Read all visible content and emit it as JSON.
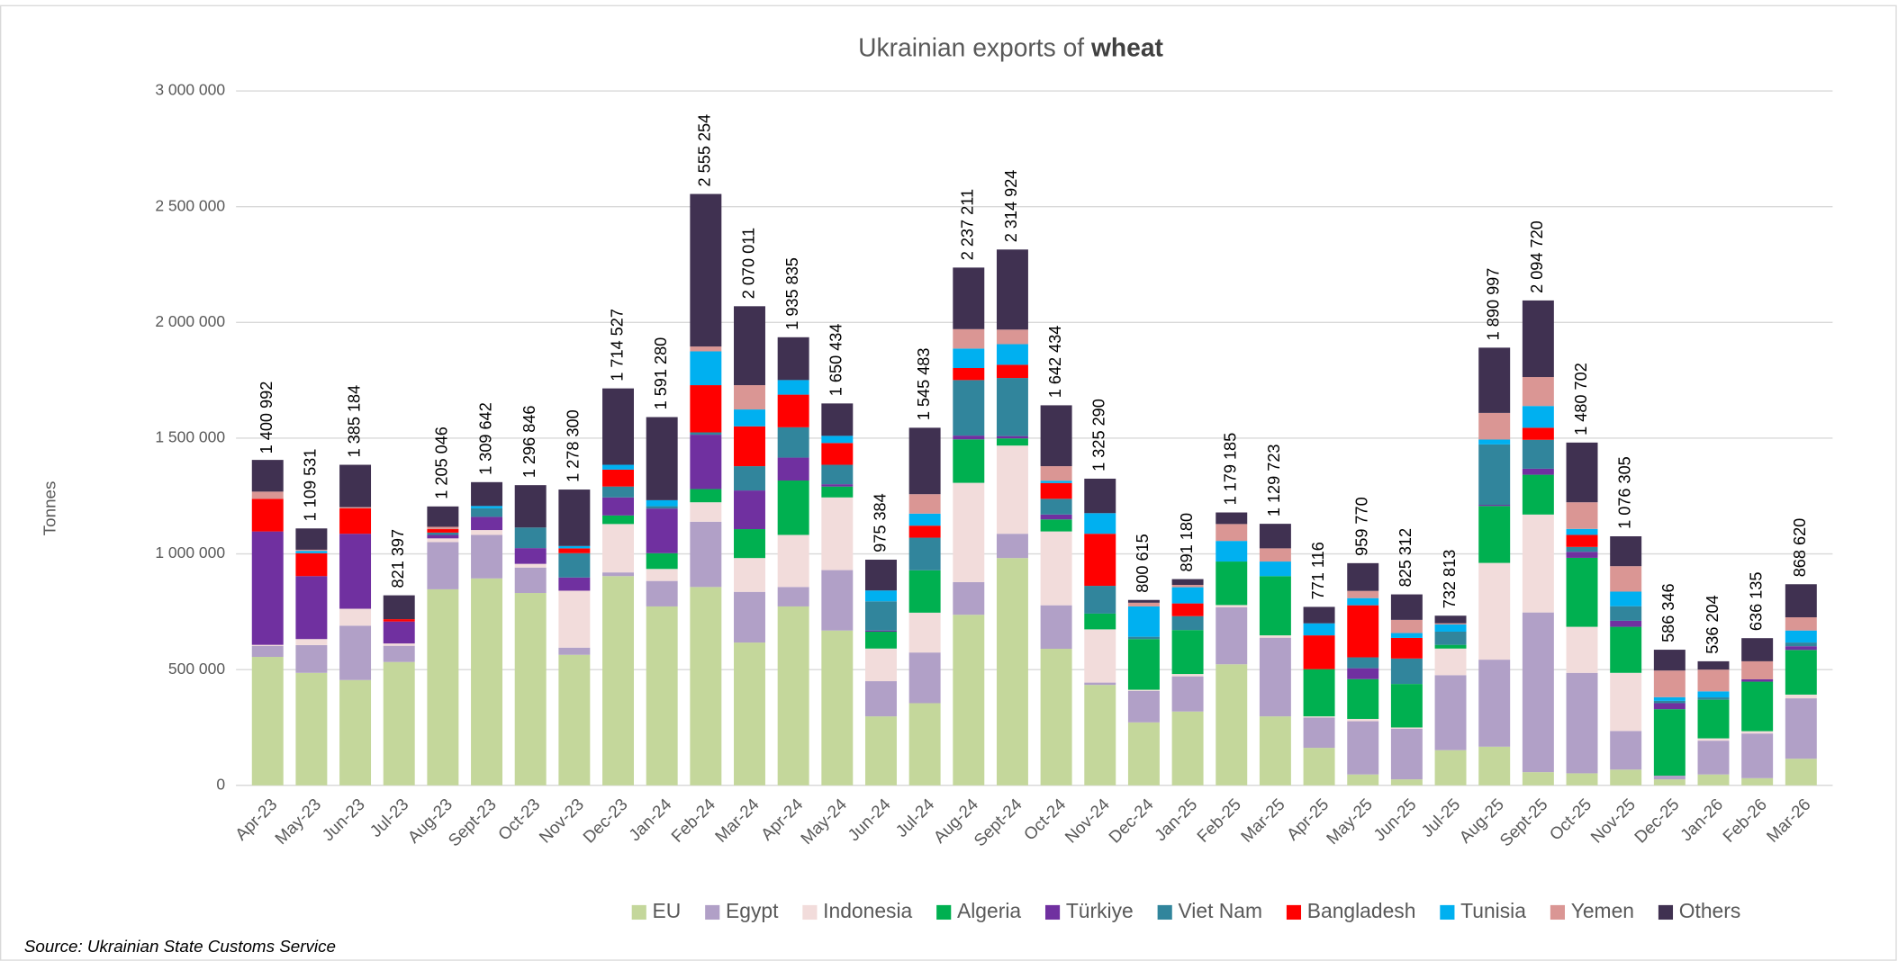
{
  "chart_data": {
    "type": "stacked_bar",
    "title": "Ukrainian exports of",
    "title_emphasis": "wheat",
    "y_label": "Tonnes",
    "source": "Source: Ukrainian State Customs Service",
    "categories": [
      "Apr-23",
      "May-23",
      "Jun-23",
      "Jul-23",
      "Aug-23",
      "Sept-23",
      "Oct-23",
      "Nov-23",
      "Dec-23",
      "Jan-24",
      "Feb-24",
      "Mar-24",
      "Apr-24",
      "May-24",
      "Jun-24",
      "Jul-24",
      "Aug-24",
      "Sept-24",
      "Oct-24",
      "Nov-24",
      "Dec-24",
      "Jan-25",
      "Feb-25",
      "Mar-25",
      "Apr-25",
      "May-25",
      "Jun-25",
      "Jul-25",
      "Aug-25",
      "Sept-25",
      "Oct-25",
      "Nov-25",
      "Dec-25",
      "Jan-26",
      "Feb-26",
      "Mar-26"
    ],
    "series": [
      {
        "name": "EU",
        "color": "#c4d79b",
        "values": [
          555000,
          486000,
          455000,
          533000,
          847000,
          894000,
          831000,
          564000,
          904000,
          773000,
          857000,
          617000,
          773000,
          669000,
          298000,
          355000,
          737000,
          982000,
          590000,
          434000,
          272000,
          319000,
          523000,
          298000,
          162000,
          47000,
          26000,
          152000,
          167000,
          57000,
          52000,
          68000,
          26000,
          47000,
          31000,
          115000
        ]
      },
      {
        "name": "Egypt",
        "color": "#b1a0c7",
        "values": [
          47000,
          120000,
          235000,
          70000,
          204000,
          188000,
          110000,
          31000,
          16000,
          110000,
          282000,
          219000,
          84000,
          261000,
          152000,
          219000,
          141000,
          105000,
          188000,
          10000,
          136000,
          152000,
          246000,
          340000,
          131000,
          230000,
          219000,
          324000,
          376000,
          690000,
          434000,
          167000,
          16000,
          146000,
          193000,
          261000
        ]
      },
      {
        "name": "Indonesia",
        "color": "#f2dcdb",
        "values": [
          5000,
          26000,
          73000,
          10000,
          16000,
          21000,
          16000,
          246000,
          209000,
          52000,
          84000,
          146000,
          225000,
          314000,
          141000,
          172000,
          429000,
          381000,
          319000,
          230000,
          5000,
          10000,
          10000,
          10000,
          5000,
          10000,
          5000,
          115000,
          418000,
          423000,
          199000,
          251000,
          0,
          10000,
          10000,
          16000
        ]
      },
      {
        "name": "Algeria",
        "color": "#00b050",
        "values": [
          0,
          0,
          0,
          0,
          0,
          0,
          0,
          0,
          37000,
          68000,
          57000,
          125000,
          235000,
          47000,
          73000,
          183000,
          188000,
          31000,
          52000,
          68000,
          219000,
          190000,
          188000,
          256000,
          204000,
          172000,
          188000,
          16000,
          246000,
          172000,
          298000,
          199000,
          287000,
          167000,
          214000,
          193000
        ]
      },
      {
        "name": "Türkiye",
        "color": "#7030a0",
        "values": [
          490000,
          272000,
          324000,
          95000,
          15000,
          57000,
          68000,
          57000,
          78000,
          193000,
          235000,
          167000,
          99000,
          10000,
          5000,
          0,
          16000,
          10000,
          21000,
          0,
          0,
          0,
          0,
          0,
          0,
          47000,
          0,
          0,
          5000,
          26000,
          26000,
          26000,
          26000,
          0,
          10000,
          16000
        ]
      },
      {
        "name": "Viet Nam",
        "color": "#31859c",
        "values": [
          0,
          0,
          0,
          0,
          10000,
          37000,
          89000,
          105000,
          47000,
          10000,
          10000,
          105000,
          131000,
          84000,
          126000,
          141000,
          240000,
          251000,
          68000,
          120000,
          10000,
          60000,
          0,
          0,
          0,
          47000,
          110000,
          57000,
          261000,
          125000,
          21000,
          63000,
          10000,
          10000,
          0,
          16000
        ]
      },
      {
        "name": "Bangladesh",
        "color": "#ff0000",
        "values": [
          141000,
          99000,
          110000,
          10000,
          15000,
          0,
          0,
          21000,
          73000,
          0,
          204000,
          172000,
          141000,
          94000,
          0,
          52000,
          52000,
          57000,
          68000,
          225000,
          0,
          55000,
          0,
          0,
          146000,
          225000,
          89000,
          0,
          0,
          52000,
          52000,
          0,
          0,
          0,
          0,
          0
        ]
      },
      {
        "name": "Tunisia",
        "color": "#00b0f0",
        "values": [
          0,
          10000,
          0,
          0,
          0,
          10000,
          0,
          10000,
          21000,
          26000,
          146000,
          73000,
          63000,
          31000,
          47000,
          52000,
          84000,
          89000,
          10000,
          89000,
          131000,
          70000,
          89000,
          63000,
          52000,
          31000,
          21000,
          31000,
          21000,
          94000,
          26000,
          63000,
          16000,
          26000,
          0,
          52000
        ]
      },
      {
        "name": "Yemen",
        "color": "#da9694",
        "values": [
          31000,
          5000,
          5000,
          0,
          10000,
          0,
          0,
          0,
          0,
          0,
          21000,
          105000,
          0,
          0,
          0,
          84000,
          84000,
          63000,
          63000,
          0,
          16000,
          10000,
          73000,
          57000,
          0,
          31000,
          57000,
          5000,
          115000,
          125000,
          115000,
          110000,
          115000,
          94000,
          78000,
          57000
        ]
      },
      {
        "name": "Others",
        "color": "#403151",
        "values": [
          137000,
          92000,
          183000,
          103000,
          88000,
          103000,
          183000,
          244000,
          330000,
          359000,
          659000,
          341000,
          185000,
          140000,
          133000,
          287000,
          266000,
          346000,
          263000,
          149000,
          12000,
          25000,
          50000,
          106000,
          71000,
          120000,
          110000,
          33000,
          282000,
          331000,
          258000,
          129000,
          90000,
          36000,
          100000,
          143000
        ]
      }
    ],
    "totals": [
      1400992,
      1109531,
      1385184,
      821397,
      1205046,
      1309642,
      1296846,
      1278300,
      1714527,
      1591280,
      2555254,
      2070011,
      1935835,
      1650434,
      975384,
      1545483,
      2237211,
      2314924,
      1642434,
      1325290,
      800615,
      891180,
      1179185,
      1129723,
      771116,
      959770,
      825312,
      732813,
      1890997,
      2094720,
      1480702,
      1076305,
      586346,
      536204,
      636135,
      868620
    ],
    "total_labels": [
      "1 400 992",
      "1 109 531",
      "1 385 184",
      "821 397",
      "1 205 046",
      "1 309 642",
      "1 296 846",
      "1 278 300",
      "1 714 527",
      "1 591 280",
      "2 555 254",
      "2 070 011",
      "1 935 835",
      "1 650 434",
      "975 384",
      "1 545 483",
      "2 237 211",
      "2 314 924",
      "1 642 434",
      "1 325 290",
      "800 615",
      "891 180",
      "1 179 185",
      "1 129 723",
      "771 116",
      "959 770",
      "825 312",
      "732 813",
      "1 890 997",
      "2 094 720",
      "1 480 702",
      "1 076 305",
      "586 346",
      "536 204",
      "636 135",
      "868 620"
    ],
    "ylim": [
      0,
      3000000
    ],
    "yticks": [
      0,
      {
        "value": 500000,
        "label": "500 000"
      },
      {
        "value": 1000000,
        "label": "1 000 000"
      },
      {
        "value": 1500000,
        "label": "1 500 000"
      },
      {
        "value": 2000000,
        "label": "2 000 000"
      },
      {
        "value": 2500000,
        "label": "2 500 000"
      },
      {
        "value": 3000000,
        "label": "3 000 000"
      }
    ],
    "grid": true,
    "legend": "bottom"
  }
}
